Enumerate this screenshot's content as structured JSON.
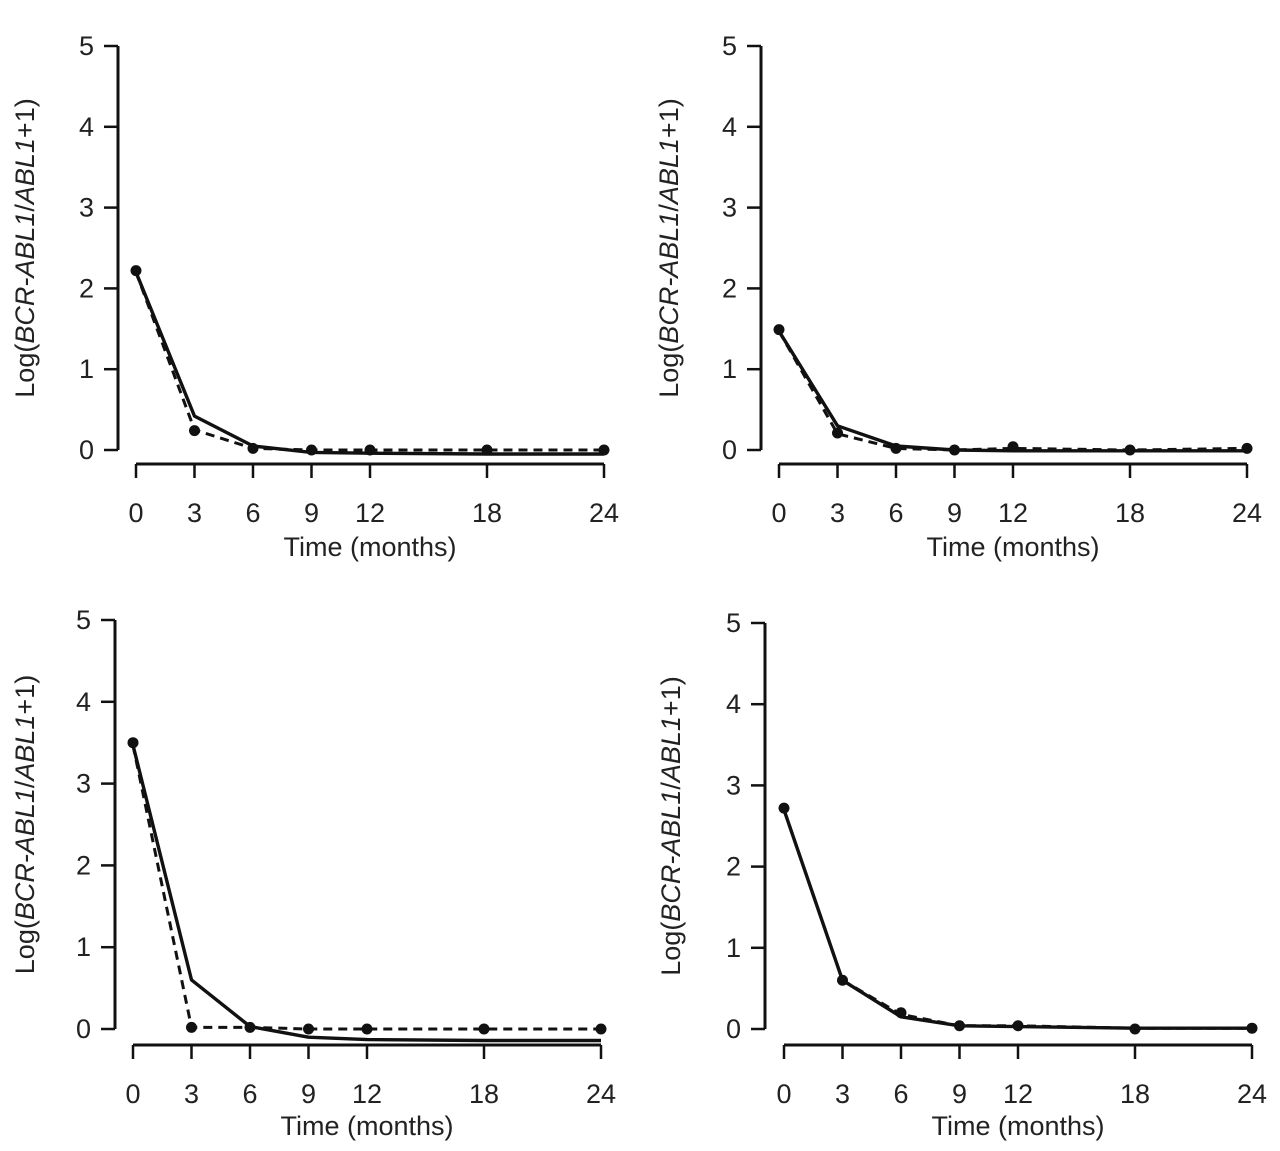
{
  "chart_data": [
    {
      "type": "line",
      "title": "",
      "xlabel": "Time (months)",
      "ylabel_parts": [
        "Log(",
        "BCR-ABL1",
        "/",
        "ABL1",
        "+1)"
      ],
      "x": [
        0,
        3,
        6,
        9,
        12,
        18,
        24
      ],
      "x_ticks": [
        "0",
        "3",
        "6",
        "9",
        "12",
        "18",
        "24"
      ],
      "y_ticks": [
        "0",
        "1",
        "2",
        "3",
        "4",
        "5"
      ],
      "xlim": [
        0,
        24
      ],
      "ylim": [
        0,
        5
      ],
      "grid": false,
      "legend": "none",
      "series": [
        {
          "line_style": "solid",
          "x": [
            0,
            3,
            6,
            9,
            12,
            18,
            24
          ],
          "values": [
            2.2,
            0.42,
            0.05,
            -0.03,
            -0.04,
            -0.05,
            -0.05
          ]
        },
        {
          "line_style": "dashed",
          "x": [
            0,
            3,
            6,
            9,
            12,
            18,
            24
          ],
          "values": [
            2.2,
            0.25,
            0.02,
            0.0,
            0.0,
            0.0,
            0.0
          ]
        }
      ],
      "markers": {
        "x": [
          0,
          3,
          6,
          9,
          12,
          18,
          24
        ],
        "values": [
          2.22,
          0.24,
          0.02,
          0.0,
          0.0,
          0.0,
          0.0
        ]
      }
    },
    {
      "type": "line",
      "title": "",
      "xlabel": "Time (months)",
      "ylabel_parts": [
        "Log(",
        "BCR-ABL1",
        "/",
        "ABL1",
        "+1)"
      ],
      "x": [
        0,
        3,
        6,
        9,
        12,
        18,
        24
      ],
      "x_ticks": [
        "0",
        "3",
        "6",
        "9",
        "12",
        "18",
        "24"
      ],
      "y_ticks": [
        "0",
        "1",
        "2",
        "3",
        "4",
        "5"
      ],
      "xlim": [
        0,
        24
      ],
      "ylim": [
        0,
        5
      ],
      "grid": false,
      "legend": "none",
      "series": [
        {
          "line_style": "solid",
          "x": [
            0,
            3,
            6,
            9,
            12,
            18,
            24
          ],
          "values": [
            1.47,
            0.3,
            0.05,
            0.0,
            -0.01,
            -0.01,
            -0.01
          ]
        },
        {
          "line_style": "dashed",
          "x": [
            0,
            3,
            6,
            9,
            12,
            18,
            24
          ],
          "values": [
            1.47,
            0.2,
            0.02,
            0.0,
            0.02,
            0.0,
            0.02
          ]
        }
      ],
      "markers": {
        "x": [
          0,
          3,
          6,
          9,
          12,
          18,
          24
        ],
        "values": [
          1.49,
          0.21,
          0.02,
          0.0,
          0.04,
          0.0,
          0.02
        ]
      }
    },
    {
      "type": "line",
      "title": "",
      "xlabel": "Time (months)",
      "ylabel_parts": [
        "Log(",
        "BCR-ABL1",
        "/",
        "ABL1",
        "+1)"
      ],
      "x": [
        0,
        3,
        6,
        9,
        12,
        18,
        24
      ],
      "x_ticks": [
        "0",
        "3",
        "6",
        "9",
        "12",
        "18",
        "24"
      ],
      "y_ticks": [
        "0",
        "1",
        "2",
        "3",
        "4",
        "5"
      ],
      "xlim": [
        0,
        24
      ],
      "ylim": [
        0,
        5
      ],
      "grid": false,
      "legend": "none",
      "series": [
        {
          "line_style": "solid",
          "x": [
            0,
            3,
            6,
            9,
            12,
            18,
            24
          ],
          "values": [
            3.47,
            0.6,
            0.03,
            -0.1,
            -0.13,
            -0.14,
            -0.14
          ]
        },
        {
          "line_style": "dashed",
          "x": [
            0,
            3,
            6,
            9,
            12,
            18,
            24
          ],
          "values": [
            3.47,
            0.02,
            0.02,
            0.0,
            0.0,
            0.0,
            0.0
          ]
        }
      ],
      "markers": {
        "x": [
          0,
          3,
          6,
          9,
          12,
          18,
          24
        ],
        "values": [
          3.5,
          0.02,
          0.02,
          0.0,
          0.0,
          0.0,
          0.0
        ]
      }
    },
    {
      "type": "line",
      "title": "",
      "xlabel": "Time (months)",
      "ylabel_parts": [
        "Log(",
        "BCR-ABL1",
        "/",
        "ABL1",
        "+1)"
      ],
      "x": [
        0,
        3,
        6,
        9,
        12,
        18,
        24
      ],
      "x_ticks": [
        "0",
        "3",
        "6",
        "9",
        "12",
        "18",
        "24"
      ],
      "y_ticks": [
        "0",
        "1",
        "2",
        "3",
        "4",
        "5"
      ],
      "xlim": [
        0,
        24
      ],
      "ylim": [
        0,
        5
      ],
      "grid": false,
      "legend": "none",
      "series": [
        {
          "line_style": "solid",
          "x": [
            0,
            3,
            6,
            9,
            12,
            18,
            24
          ],
          "values": [
            2.7,
            0.6,
            0.15,
            0.04,
            0.03,
            0.01,
            0.01
          ]
        },
        {
          "line_style": "dashed",
          "x": [
            0,
            3,
            6,
            9,
            12,
            18,
            24
          ],
          "values": [
            2.7,
            0.6,
            0.18,
            0.04,
            0.04,
            0.01,
            0.01
          ]
        }
      ],
      "markers": {
        "x": [
          0,
          3,
          6,
          9,
          12,
          18,
          24
        ],
        "values": [
          2.72,
          0.6,
          0.2,
          0.04,
          0.04,
          0.0,
          0.01
        ]
      }
    }
  ]
}
